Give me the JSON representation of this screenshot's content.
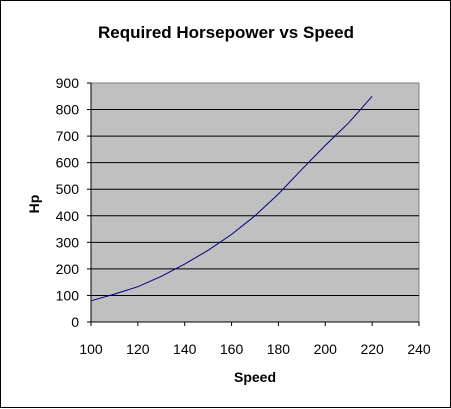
{
  "chart_data": {
    "type": "line",
    "title": "Required Horsepower vs Speed",
    "xlabel": "Speed",
    "ylabel": "Hp",
    "xlim": [
      100,
      240
    ],
    "ylim": [
      0,
      900
    ],
    "x_ticks": [
      100,
      120,
      140,
      160,
      180,
      200,
      220,
      240
    ],
    "y_ticks": [
      0,
      100,
      200,
      300,
      400,
      500,
      600,
      700,
      800,
      900
    ],
    "grid": "horizontal",
    "legend": "none",
    "plot_background": "#c0c0c0",
    "line_color": "#000080",
    "series": [
      {
        "x": [
          100,
          110,
          120,
          130,
          140,
          150,
          160,
          170,
          180,
          190,
          200,
          210,
          220
        ],
        "values": [
          80,
          105,
          133,
          172,
          218,
          270,
          330,
          400,
          482,
          575,
          665,
          750,
          850
        ]
      }
    ]
  }
}
